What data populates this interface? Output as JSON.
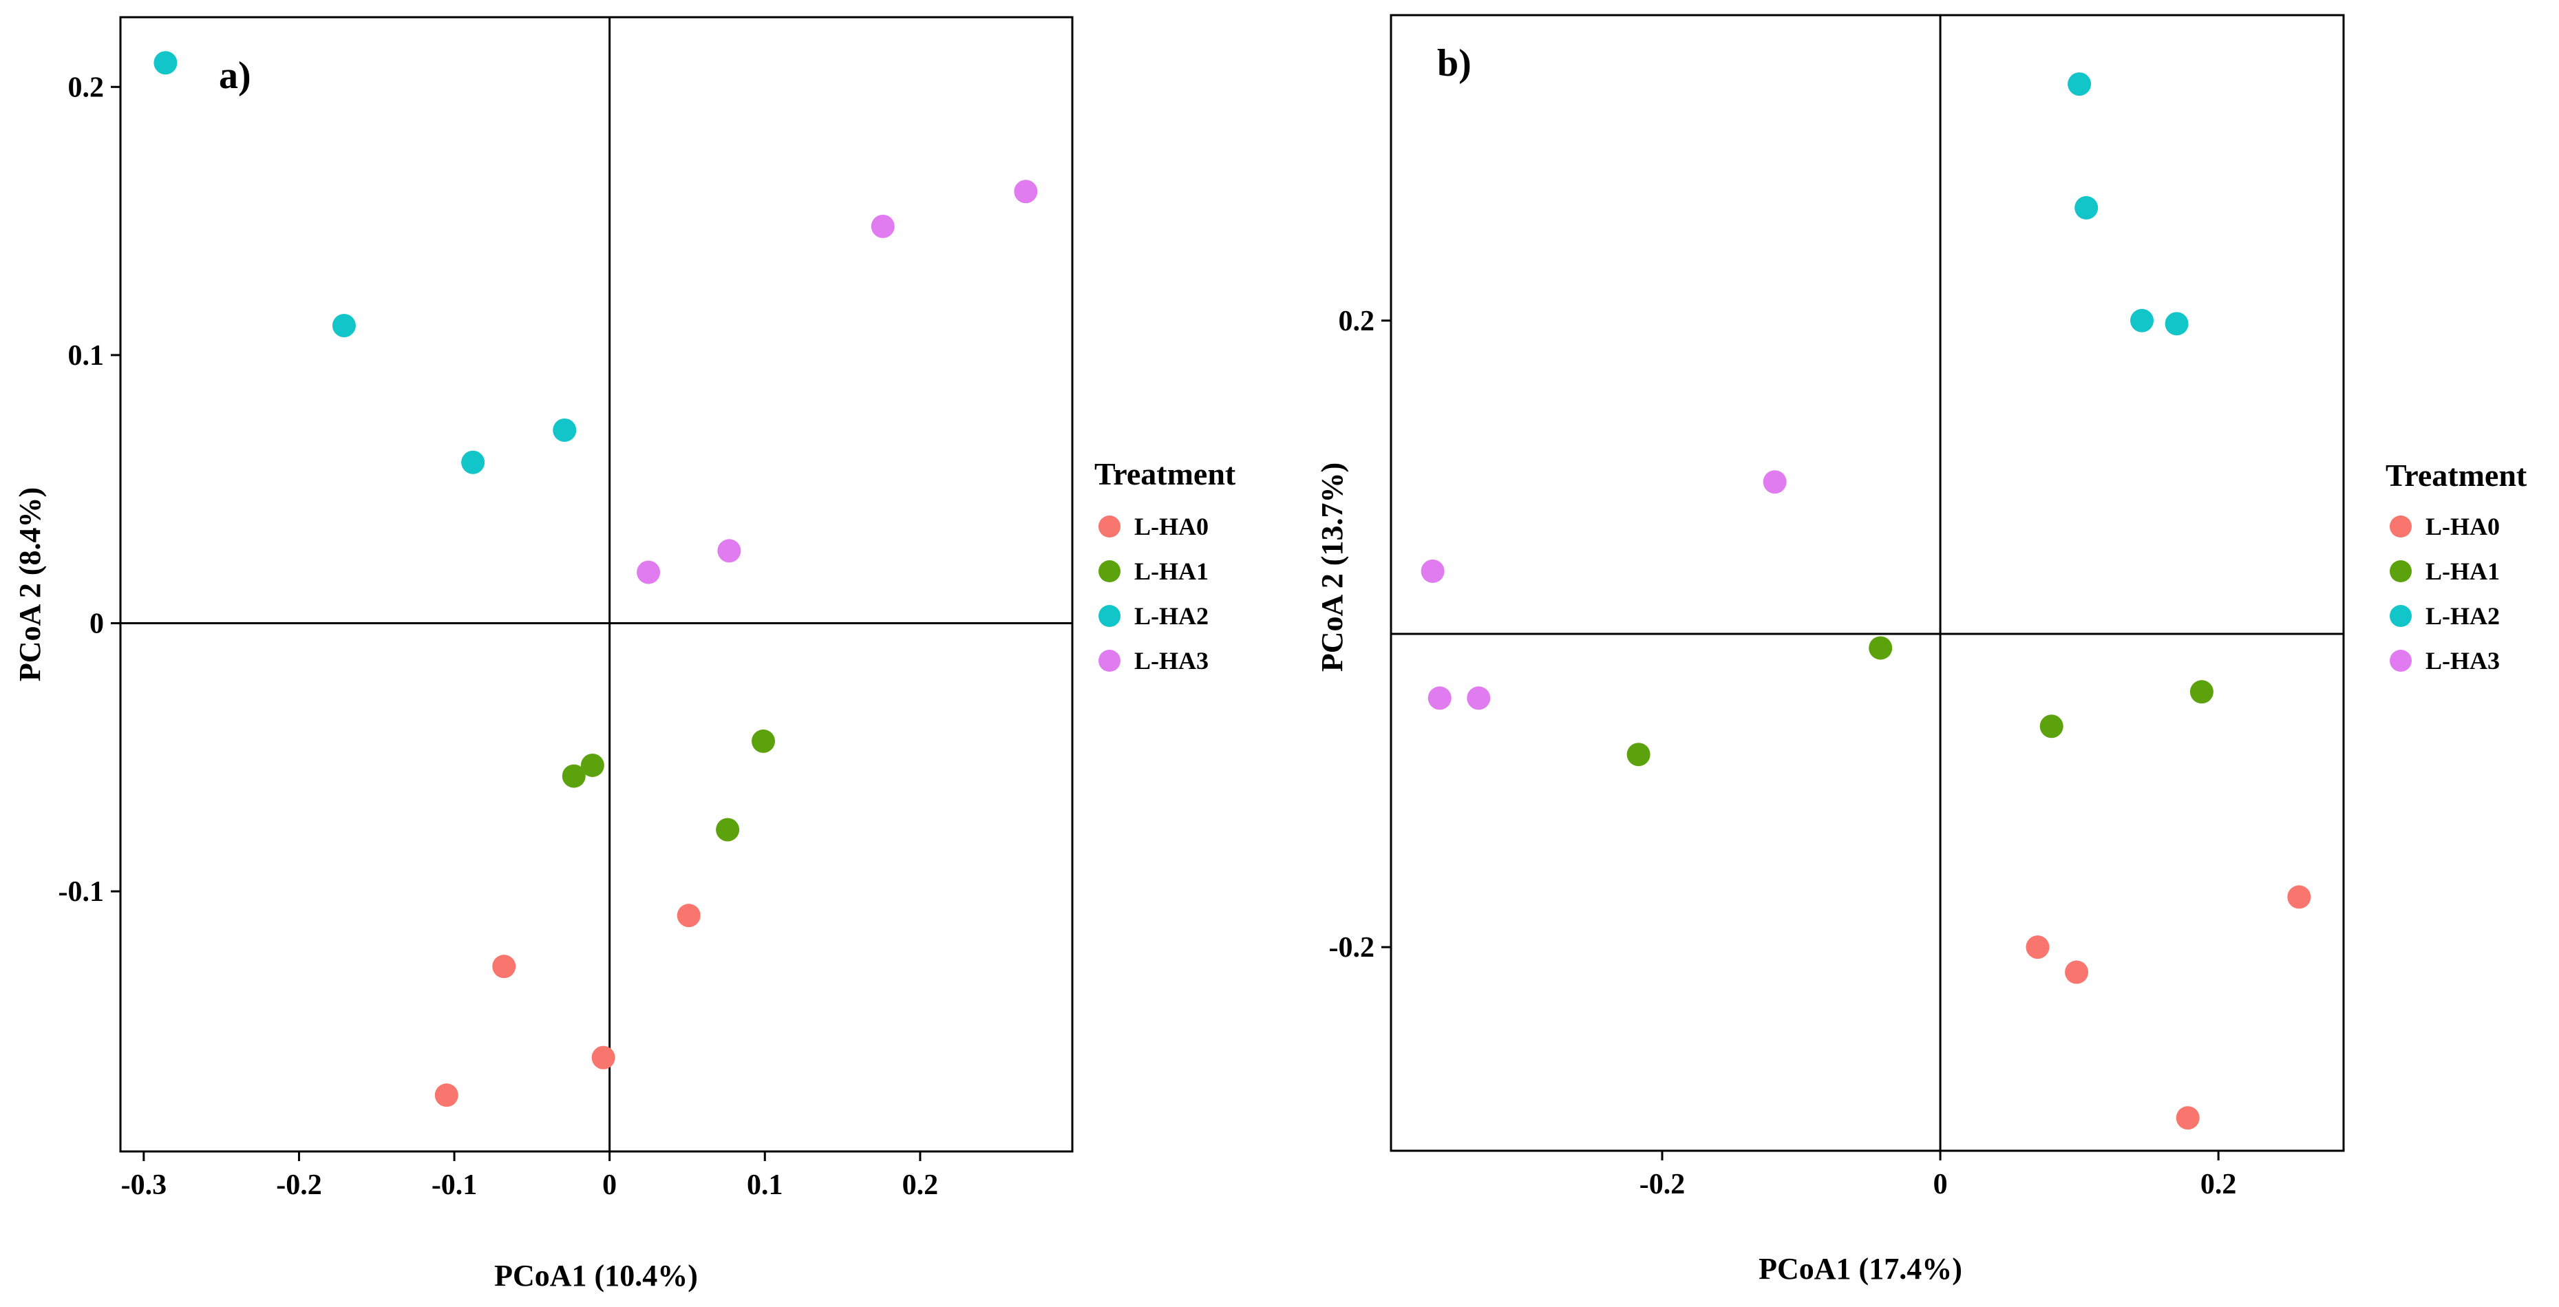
{
  "legend_title": "Treatment",
  "groups": [
    {
      "name": "L-HA0",
      "color": "#F8766D"
    },
    {
      "name": "L-HA1",
      "color": "#5BA20C"
    },
    {
      "name": "L-HA2",
      "color": "#12C5C9"
    },
    {
      "name": "L-HA3",
      "color": "#E07CF0"
    }
  ],
  "chart_data": [
    {
      "type": "scatter",
      "panel_label": "a)",
      "xlabel": "PCoA1 (10.4%)",
      "ylabel": "PCoA 2 (8.4%)",
      "xlim": [
        -0.315,
        0.298
      ],
      "ylim": [
        -0.197,
        0.226
      ],
      "xticks": [
        -0.3,
        -0.2,
        -0.1,
        0,
        0.1,
        0.2
      ],
      "xtick_labels": [
        "-0.3",
        "-0.2",
        "-0.1",
        "0",
        "0.1",
        "0.2"
      ],
      "yticks": [
        -0.1,
        0,
        0.1,
        0.2
      ],
      "ytick_labels": [
        "-0.1",
        "0",
        "0.1",
        "0.2"
      ],
      "reference_lines": {
        "x": 0,
        "y": 0
      },
      "legend_position": "right",
      "series": [
        {
          "name": "L-HA0",
          "points": [
            [
              -0.105,
              -0.176
            ],
            [
              -0.068,
              -0.128
            ],
            [
              -0.004,
              -0.162
            ],
            [
              0.051,
              -0.109
            ]
          ]
        },
        {
          "name": "L-HA1",
          "points": [
            [
              -0.023,
              -0.057
            ],
            [
              -0.011,
              -0.053
            ],
            [
              0.076,
              -0.077
            ],
            [
              0.099,
              -0.044
            ]
          ]
        },
        {
          "name": "L-HA2",
          "points": [
            [
              -0.286,
              0.209
            ],
            [
              -0.171,
              0.111
            ],
            [
              -0.088,
              0.06
            ],
            [
              -0.029,
              0.072
            ]
          ]
        },
        {
          "name": "L-HA3",
          "points": [
            [
              0.025,
              0.019
            ],
            [
              0.077,
              0.027
            ],
            [
              0.176,
              0.148
            ],
            [
              0.268,
              0.161
            ]
          ]
        }
      ]
    },
    {
      "type": "scatter",
      "panel_label": "b)",
      "xlabel": "PCoA1 (17.4%)",
      "ylabel": "PCoA 2 (13.7%)",
      "xlim": [
        -0.395,
        0.29
      ],
      "ylim": [
        -0.33,
        0.395
      ],
      "xticks": [
        -0.2,
        0,
        0.2
      ],
      "xtick_labels": [
        "-0.2",
        "0",
        "0.2"
      ],
      "yticks": [
        -0.2,
        0.2
      ],
      "ytick_labels": [
        "-0.2",
        "0.2"
      ],
      "reference_lines": {
        "x": 0,
        "y": 0
      },
      "legend_position": "right",
      "series": [
        {
          "name": "L-HA0",
          "points": [
            [
              0.07,
              -0.2
            ],
            [
              0.098,
              -0.216
            ],
            [
              0.178,
              -0.309
            ],
            [
              0.258,
              -0.168
            ]
          ]
        },
        {
          "name": "L-HA1",
          "points": [
            [
              -0.217,
              -0.077
            ],
            [
              -0.043,
              -0.009
            ],
            [
              0.08,
              -0.059
            ],
            [
              0.188,
              -0.037
            ]
          ]
        },
        {
          "name": "L-HA2",
          "points": [
            [
              0.1,
              0.351
            ],
            [
              0.105,
              0.272
            ],
            [
              0.145,
              0.2
            ],
            [
              0.17,
              0.198
            ]
          ]
        },
        {
          "name": "L-HA3",
          "points": [
            [
              -0.365,
              0.04
            ],
            [
              -0.36,
              -0.041
            ],
            [
              -0.332,
              -0.041
            ],
            [
              -0.119,
              0.097
            ]
          ]
        }
      ]
    }
  ]
}
